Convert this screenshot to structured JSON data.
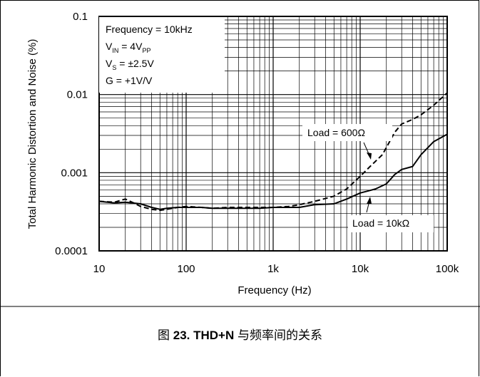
{
  "caption": {
    "prefix": "图",
    "number": "23. THD+N",
    "suffix": "与频率间的关系"
  },
  "chart_data": {
    "type": "line",
    "xlabel": "Frequency (Hz)",
    "ylabel": "Total Harmonic Distortion and Noise (%)",
    "x_scale": "log",
    "y_scale": "log",
    "xlim": [
      10,
      100000
    ],
    "ylim": [
      0.0001,
      0.1
    ],
    "x_ticks": [
      {
        "value": 10,
        "label": "10"
      },
      {
        "value": 100,
        "label": "100"
      },
      {
        "value": 1000,
        "label": "1k"
      },
      {
        "value": 10000,
        "label": "10k"
      },
      {
        "value": 100000,
        "label": "100k"
      }
    ],
    "y_ticks": [
      {
        "value": 0.0001,
        "label": "0.0001"
      },
      {
        "value": 0.001,
        "label": "0.001"
      },
      {
        "value": 0.01,
        "label": "0.01"
      },
      {
        "value": 0.1,
        "label": "0.1"
      }
    ],
    "grid": true,
    "conditions": {
      "line1": "Frequency = 10kHz",
      "line2_main": "V",
      "line2_sub": "IN",
      "line2_rest": " = 4V",
      "line2_sub2": "PP",
      "line3_main": "V",
      "line3_sub": "S",
      "line3_rest": " = ±2.5V",
      "line4": "G = +1V/V"
    },
    "series": [
      {
        "name": "Load = 600Ω",
        "style": "dashed",
        "color": "#000000",
        "x": [
          10,
          15,
          20,
          25,
          30,
          40,
          50,
          60,
          80,
          100,
          150,
          200,
          300,
          500,
          700,
          1000,
          1500,
          2000,
          3000,
          5000,
          7000,
          10000,
          13000,
          15000,
          18000,
          20000,
          25000,
          30000,
          40000,
          50000,
          70000,
          100000
        ],
        "y": [
          0.00043,
          0.00042,
          0.00046,
          0.00041,
          0.00037,
          0.00034,
          0.00033,
          0.00034,
          0.00036,
          0.00037,
          0.00036,
          0.00035,
          0.00036,
          0.00036,
          0.00036,
          0.00036,
          0.00037,
          0.00039,
          0.00043,
          0.0005,
          0.00062,
          0.0009,
          0.0012,
          0.0014,
          0.0017,
          0.0021,
          0.0033,
          0.0042,
          0.0048,
          0.0055,
          0.0073,
          0.0105
        ]
      },
      {
        "name": "Load = 10kΩ",
        "style": "solid",
        "color": "#000000",
        "x": [
          10,
          15,
          20,
          30,
          40,
          50,
          60,
          80,
          100,
          150,
          200,
          300,
          500,
          700,
          1000,
          1500,
          2000,
          3000,
          5000,
          7000,
          10000,
          12000,
          15000,
          20000,
          25000,
          30000,
          40000,
          50000,
          70000,
          100000
        ],
        "y": [
          0.00043,
          0.00041,
          0.00042,
          0.0004,
          0.00036,
          0.00034,
          0.00035,
          0.00036,
          0.00036,
          0.00036,
          0.00035,
          0.00035,
          0.00035,
          0.00035,
          0.00036,
          0.00036,
          0.00036,
          0.00039,
          0.0004,
          0.00046,
          0.00055,
          0.00058,
          0.00062,
          0.00072,
          0.00095,
          0.0011,
          0.0012,
          0.0017,
          0.0025,
          0.0031
        ]
      }
    ],
    "annotations": {
      "load600": "Load = 600Ω",
      "load10k": "Load = 10kΩ"
    }
  }
}
